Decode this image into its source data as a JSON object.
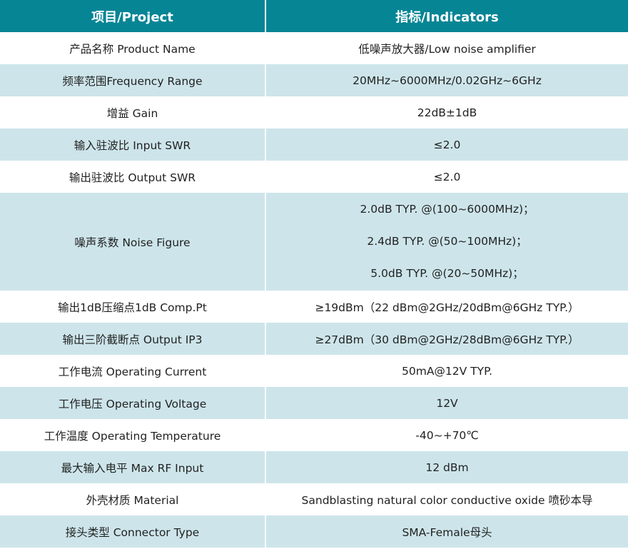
{
  "header": {
    "project": "项目/Project",
    "indicators": "指标/Indicators"
  },
  "rows": [
    {
      "item": "产品名称 Product Name",
      "value": "低噪声放大器/Low noise amplifier"
    },
    {
      "item": "频率范围Frequency Range",
      "value": "20MHz~6000MHz/0.02GHz~6GHz"
    },
    {
      "item": "增益 Gain",
      "value": "22dB±1dB"
    },
    {
      "item": "输入驻波比 Input SWR",
      "value": "≤2.0"
    },
    {
      "item": "输出驻波比 Output SWR",
      "value": "≤2.0"
    },
    {
      "item": "噪声系数 Noise Figure",
      "values": [
        "2.0dB TYP. @(100~6000MHz)；",
        "2.4dB TYP. @(50~100MHz)；",
        "5.0dB TYP. @(20~50MHz)；"
      ]
    },
    {
      "item": "输出1dB压缩点1dB Comp.Pt",
      "value": "≥19dBm（22 dBm@2GHz/20dBm@6GHz TYP.）"
    },
    {
      "item": "输出三阶截断点 Output IP3",
      "value": "≥27dBm（30 dBm@2GHz/28dBm@6GHz TYP.）"
    },
    {
      "item": "工作电流 Operating Current",
      "value": "50mA@12V TYP."
    },
    {
      "item": "工作电压 Operating Voltage",
      "value": "12V"
    },
    {
      "item": "工作温度 Operating Temperature",
      "value": "-40~+70℃"
    },
    {
      "item": "最大输入电平 Max RF Input",
      "value": "12 dBm"
    },
    {
      "item": "外壳材质 Material",
      "value": "Sandblasting natural color conductive oxide 喷砂本导"
    },
    {
      "item": "接头类型 Connector Type",
      "value": "SMA-Female母头"
    }
  ],
  "colors": {
    "header": "#068595",
    "stripe": "#cde5ea"
  }
}
